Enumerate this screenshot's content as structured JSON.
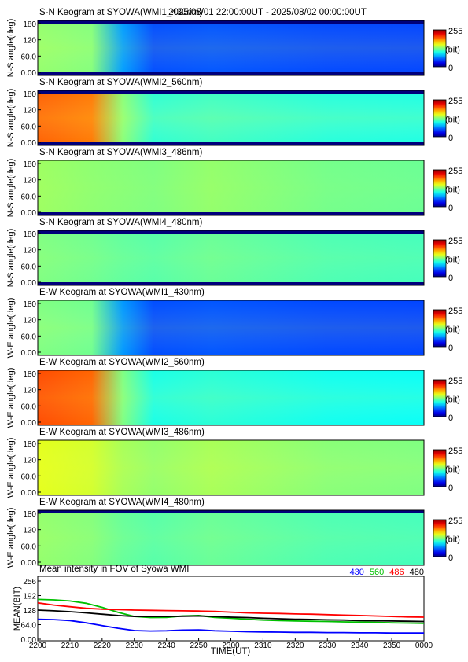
{
  "header": {
    "time_range": "2025/08/01 22:00:00UT - 2025/08/02 00:00:00UT"
  },
  "keograms": [
    {
      "title": "S-N Keogram at SYOWA(WMI1_430nm)",
      "ylabel": "N-S angle(deg)",
      "yticks": [
        "180",
        "120",
        "60.0",
        "0.00"
      ],
      "colormap": "jet",
      "profile": {
        "base": 0.2,
        "early": 0.52,
        "center_boost": 0.06,
        "top_dark": true,
        "bottom_dark": true
      }
    },
    {
      "title": "S-N Keogram at SYOWA(WMI2_560nm)",
      "ylabel": "N-S angle(deg)",
      "yticks": [
        "180",
        "120",
        "60.0",
        "0.00"
      ],
      "colormap": "jet",
      "profile": {
        "base": 0.42,
        "early": 0.78,
        "center_boost": 0.08,
        "top_dark": true,
        "bottom_dark": true
      }
    },
    {
      "title": "S-N Keogram at SYOWA(WMI3_486nm)",
      "ylabel": "N-S angle(deg)",
      "yticks": [
        "180",
        "120",
        "60.0",
        "0.00"
      ],
      "colormap": "jet",
      "profile": {
        "base": 0.5,
        "early": 0.53,
        "center_boost": 0.02,
        "top_dark": false,
        "bottom_dark": true
      }
    },
    {
      "title": "S-N Keogram at SYOWA(WMI4_480nm)",
      "ylabel": "N-S angle(deg)",
      "yticks": [
        "180",
        "120",
        "60.0",
        "0.00"
      ],
      "colormap": "jet",
      "profile": {
        "base": 0.46,
        "early": 0.5,
        "center_boost": 0.04,
        "top_dark": true,
        "bottom_dark": true
      }
    },
    {
      "title": "E-W Keogram at SYOWA(WMI1_430nm)",
      "ylabel": "W-E angle(deg)",
      "yticks": [
        "180",
        "120",
        "60.0",
        "0.00"
      ],
      "colormap": "jet",
      "profile": {
        "base": 0.2,
        "early": 0.5,
        "center_boost": 0.06,
        "top_dark": false,
        "bottom_dark": false
      }
    },
    {
      "title": "E-W Keogram at SYOWA(WMI2_560nm)",
      "ylabel": "W-E angle(deg)",
      "yticks": [
        "180",
        "120",
        "60.0",
        "0.00"
      ],
      "colormap": "jet",
      "profile": {
        "base": 0.4,
        "early": 0.8,
        "center_boost": 0.06,
        "top_dark": false,
        "bottom_dark": false
      }
    },
    {
      "title": "E-W Keogram at SYOWA(WMI3_486nm)",
      "ylabel": "W-E angle(deg)",
      "yticks": [
        "180",
        "120",
        "60.0",
        "0.00"
      ],
      "colormap": "jet",
      "profile": {
        "base": 0.52,
        "early": 0.6,
        "center_boost": 0.05,
        "top_dark": false,
        "bottom_dark": false
      }
    },
    {
      "title": "E-W Keogram at SYOWA(WMI4_480nm)",
      "ylabel": "W-E angle(deg)",
      "yticks": [
        "180",
        "120",
        "60.0",
        "0.00"
      ],
      "colormap": "jet",
      "profile": {
        "base": 0.46,
        "early": 0.52,
        "center_boost": 0.04,
        "top_dark": true,
        "bottom_dark": false
      }
    }
  ],
  "colorbar": {
    "max_label": "255",
    "unit_label": "(bit)",
    "min_label": "0"
  },
  "chart_data": {
    "type": "line",
    "title": "Mean intensity in FOV of Syowa WMI",
    "xlabel": "TIME(UT)",
    "ylabel": "MEAN(BIT)",
    "ylim": [
      0,
      256
    ],
    "yticks": [
      "256",
      "192",
      "128",
      "64.0",
      "0.00"
    ],
    "xlim": [
      0,
      120
    ],
    "xticks": [
      "2200",
      "2210",
      "2220",
      "2230",
      "2240",
      "2250",
      "2300",
      "2310",
      "2320",
      "2330",
      "2340",
      "2350",
      "0000"
    ],
    "legend_position": "top-right",
    "x": [
      0,
      5,
      10,
      15,
      20,
      25,
      30,
      35,
      40,
      45,
      50,
      55,
      60,
      65,
      70,
      75,
      80,
      85,
      90,
      95,
      100,
      105,
      110,
      115,
      120
    ],
    "series": [
      {
        "name": "430",
        "color": "#0000ff",
        "values": [
          88,
          86,
          82,
          72,
          60,
          48,
          38,
          36,
          37,
          40,
          41,
          37,
          35,
          33,
          32,
          31,
          30,
          30,
          29,
          29,
          28,
          28,
          27,
          27,
          27
        ]
      },
      {
        "name": "560",
        "color": "#00c000",
        "values": [
          175,
          173,
          168,
          158,
          140,
          118,
          100,
          95,
          96,
          102,
          104,
          96,
          92,
          88,
          84,
          82,
          80,
          79,
          78,
          76,
          75,
          74,
          72,
          71,
          70
        ]
      },
      {
        "name": "486",
        "color": "#ff0000",
        "values": [
          160,
          150,
          143,
          136,
          132,
          130,
          128,
          127,
          126,
          125,
          124,
          122,
          119,
          116,
          114,
          113,
          111,
          110,
          108,
          106,
          104,
          102,
          100,
          98,
          97
        ]
      },
      {
        "name": "480",
        "color": "#000000",
        "values": [
          128,
          125,
          121,
          116,
          110,
          104,
          100,
          100,
          100,
          101,
          102,
          100,
          97,
          95,
          92,
          90,
          88,
          87,
          85,
          84,
          82,
          81,
          80,
          79,
          78
        ]
      }
    ]
  }
}
